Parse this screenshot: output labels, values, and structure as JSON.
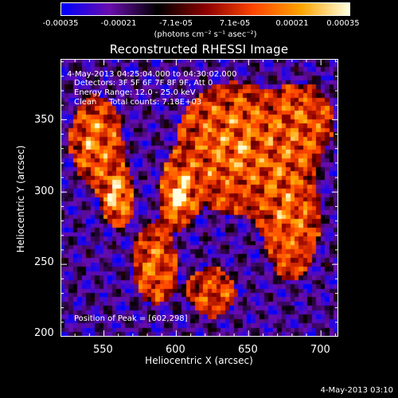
{
  "colorbar": {
    "ticks": [
      "-0.00035",
      "-0.00021",
      "-7.1e-05",
      "7.1e-05",
      "0.00021",
      "0.00035"
    ],
    "values": [
      -0.00035,
      -0.00021,
      -7.1e-05,
      7.1e-05,
      0.00021,
      0.00035
    ],
    "unit": "(photons cm⁻² s⁻¹ asec⁻²)",
    "colors": [
      "#0000ff",
      "#6a0dad",
      "#000000",
      "#8b0000",
      "#ff4500",
      "#ffa500",
      "#ffffe0"
    ]
  },
  "chart_data": {
    "type": "heatmap",
    "title": "Reconstructed RHESSI Image",
    "xlabel": "Heliocentric X (arcsec)",
    "ylabel": "Heliocentric Y (arcsec)",
    "xlim": [
      520,
      712
    ],
    "ylim": [
      200,
      392
    ],
    "xticks": [
      550,
      600,
      650,
      700
    ],
    "yticks": [
      200,
      250,
      300,
      350
    ],
    "xtick_labels": [
      "550",
      "600",
      "650",
      "700"
    ],
    "ytick_labels": [
      "200",
      "250",
      "300",
      "350"
    ],
    "zlim": [
      -0.00035,
      0.00035
    ],
    "peak": [
      602,
      298
    ],
    "annotations": {
      "time": "4-May-2013 04:25:04.000 to 04:30:02.000",
      "detectors": "Detectors: 3F 5F 6F 7F 8F 9F, Att 0",
      "energy": "Energy Range: 12.0 - 25.0 keV",
      "method": "Clean",
      "counts": "Total counts: 7.18E+03",
      "peak_label": "Position of Peak = [602,298]"
    }
  },
  "timestamp": "4-May-2013 03:10"
}
